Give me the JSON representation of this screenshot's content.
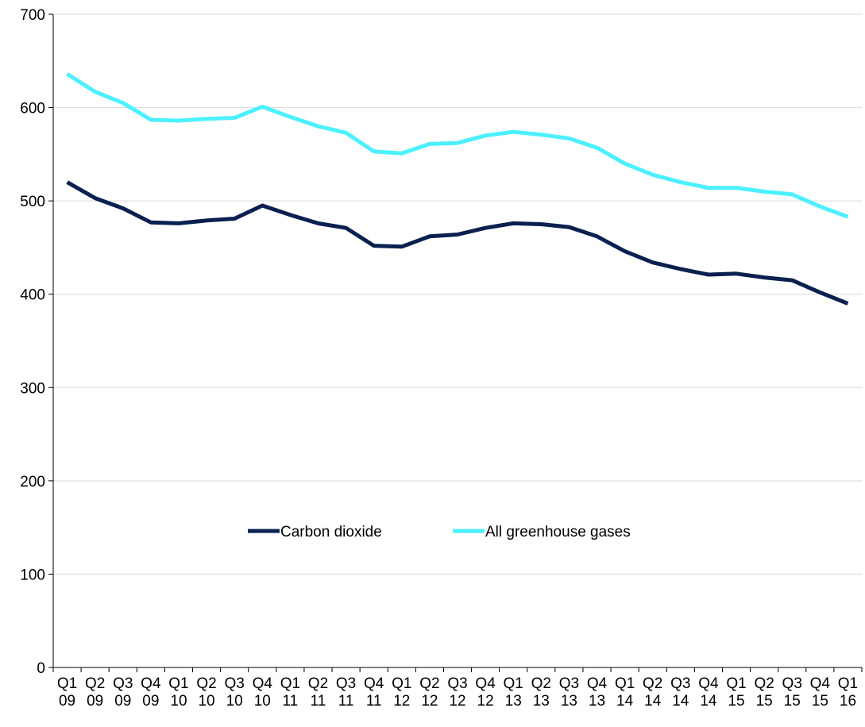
{
  "chart_data": {
    "type": "line",
    "categories": [
      "Q1 09",
      "Q2 09",
      "Q3 09",
      "Q4 09",
      "Q1 10",
      "Q2 10",
      "Q3 10",
      "Q4 10",
      "Q1 11",
      "Q2 11",
      "Q3 11",
      "Q4 11",
      "Q1 12",
      "Q2 12",
      "Q3 12",
      "Q4 12",
      "Q1 13",
      "Q2 13",
      "Q3 13",
      "Q4 13",
      "Q1 14",
      "Q2 14",
      "Q3 14",
      "Q4 14",
      "Q1 15",
      "Q2 15",
      "Q3 15",
      "Q4 15",
      "Q1 16"
    ],
    "series": [
      {
        "name": "Carbon dioxide",
        "color": "#0a2050",
        "values": [
          520,
          503,
          492,
          477,
          476,
          479,
          481,
          495,
          485,
          476,
          471,
          452,
          451,
          462,
          464,
          471,
          476,
          475,
          472,
          462,
          446,
          434,
          427,
          421,
          422,
          418,
          415,
          402,
          390
        ]
      },
      {
        "name": "All greenhouse gases",
        "color": "#4cf0ff",
        "values": [
          636,
          617,
          605,
          587,
          586,
          588,
          589,
          601,
          590,
          580,
          573,
          553,
          551,
          561,
          562,
          570,
          574,
          571,
          567,
          557,
          540,
          528,
          520,
          514,
          514,
          510,
          507,
          494,
          483
        ]
      }
    ],
    "ylim": [
      0,
      700
    ],
    "yticks": [
      0,
      100,
      200,
      300,
      400,
      500,
      600,
      700
    ],
    "grid": true
  }
}
